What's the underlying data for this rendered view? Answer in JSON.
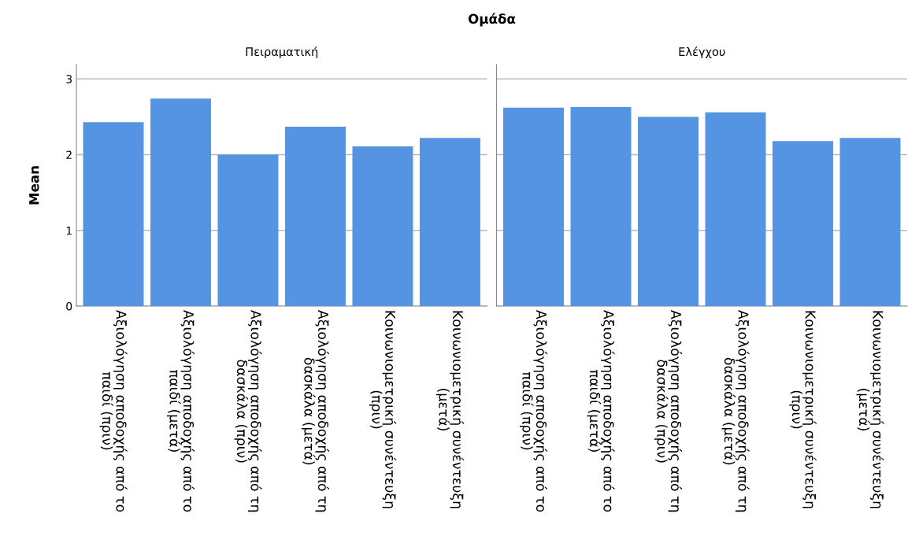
{
  "chart_data": [
    {
      "type": "bar",
      "title": "Πειραματική",
      "ylabel": "Mean",
      "annotations": [
        "Ομάδα"
      ],
      "categories": [
        "Αξιολόγηση αποδοχής από το παιδί (πριν)",
        "Αξιολόγηση αποδοχής από το παιδί (μετά)",
        "Αξιολόγηση αποδοχής από τη δασκάλα (πριν)",
        "Αξιολόγηση αποδοχής από τη δασκάλα (μετά)",
        "Κοινωνιομετρική συνέντευξη (πριν)",
        "Κοινωνιομετρική συνέντευξη (μετά)"
      ],
      "values": [
        2.43,
        2.74,
        2.0,
        2.37,
        2.11,
        2.22
      ],
      "color": "#5593e3",
      "ylim": [
        0,
        3.19
      ],
      "yticks": [
        0,
        1,
        2,
        3
      ],
      "grid": "y"
    },
    {
      "type": "bar",
      "title": "Ελέγχου",
      "categories": [
        "Αξιολόγηση αποδοχής από το παιδί (πριν)",
        "Αξιολόγηση αποδοχής από το παιδί (μετά)",
        "Αξιολόγηση αποδοχής από τη δασκάλα (πριν)",
        "Αξιολόγηση αποδοχής από τη δασκάλα (μετά)",
        "Κοινωνιομετρική συνέντευξη (πριν)",
        "Κοινωνιομετρική συνέντευξη (μετά)"
      ],
      "values": [
        2.62,
        2.63,
        2.5,
        2.56,
        2.18,
        2.22
      ],
      "color": "#5593e3",
      "ylim": [
        0,
        3.19
      ],
      "yticks": [
        0,
        1,
        2,
        3
      ],
      "grid": "y",
      "tick_labels": "x"
    }
  ]
}
